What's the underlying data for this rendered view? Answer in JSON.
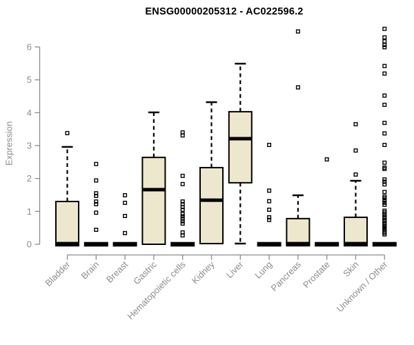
{
  "chart_data": {
    "type": "boxplot",
    "title": "ENSG00000205312 - AC022596.2",
    "ylabel": "Expression",
    "xlabel": "",
    "ylim": [
      0,
      6.6
    ],
    "yticks": [
      0,
      1,
      2,
      3,
      4,
      5,
      6
    ],
    "grid": false,
    "legend": "none",
    "colors": {
      "box_fill": "#EDE7CD",
      "box_stroke": "#000000",
      "axis": "#8A8A8A",
      "tick_text": "#8C8C8C",
      "title_text": "#000000"
    },
    "categories": [
      "Bladder",
      "Brain",
      "Breast",
      "Gastric",
      "Hematopoietic cells",
      "Kidney",
      "Liver",
      "Lung",
      "Pancreas",
      "Prostate",
      "Skin",
      "Unknown / Other"
    ],
    "series": [
      {
        "category": "Bladder",
        "low": 0,
        "q1": 0,
        "median": 0,
        "q3": 1.3,
        "high": 2.96,
        "outliers": [
          3.38
        ]
      },
      {
        "category": "Brain",
        "low": 0,
        "q1": 0,
        "median": 0,
        "q3": 0,
        "high": 0,
        "outliers": [
          2.44,
          1.94,
          1.55,
          1.47,
          1.3,
          1.22,
          0.96,
          0.44
        ]
      },
      {
        "category": "Breast",
        "low": 0,
        "q1": 0,
        "median": 0,
        "q3": 0,
        "high": 0,
        "outliers": [
          1.49,
          1.26,
          0.86,
          0.34
        ]
      },
      {
        "category": "Gastric",
        "low": 0,
        "q1": 0,
        "median": 1.66,
        "q3": 2.64,
        "high": 4.01,
        "outliers": []
      },
      {
        "category": "Hematopoietic cells",
        "low": 0,
        "q1": 0,
        "median": 0,
        "q3": 0,
        "high": 0,
        "outliers": [
          3.4,
          3.31,
          2.08,
          1.83,
          1.3,
          1.22,
          1.13,
          1.05,
          0.92,
          0.85,
          0.78,
          0.7,
          0.63,
          0.36,
          0.27
        ]
      },
      {
        "category": "Kidney",
        "low": 0.02,
        "q1": 0.02,
        "median": 1.34,
        "q3": 2.33,
        "high": 4.32,
        "outliers": []
      },
      {
        "category": "Liver",
        "low": 0.02,
        "q1": 1.87,
        "median": 3.21,
        "q3": 4.03,
        "high": 5.49,
        "outliers": []
      },
      {
        "category": "Lung",
        "low": 0,
        "q1": 0,
        "median": 0,
        "q3": 0,
        "high": 0,
        "outliers": [
          3.02,
          1.63,
          1.31,
          1.05,
          0.82,
          0.74
        ]
      },
      {
        "category": "Pancreas",
        "low": 0,
        "q1": 0,
        "median": 0,
        "q3": 0.78,
        "high": 1.49,
        "outliers": [
          6.47,
          4.77
        ]
      },
      {
        "category": "Prostate",
        "low": 0,
        "q1": 0,
        "median": 0,
        "q3": 0,
        "high": 0,
        "outliers": [
          2.58
        ]
      },
      {
        "category": "Skin",
        "low": 0,
        "q1": 0,
        "median": 0,
        "q3": 0.82,
        "high": 1.93,
        "outliers": [
          3.65,
          2.85,
          2.12
        ]
      },
      {
        "category": "Unknown / Other",
        "low": 0,
        "q1": 0,
        "median": 0,
        "q3": 0,
        "high": 0,
        "outliers": [
          6.55,
          6.29,
          6.17,
          6.06,
          5.99,
          5.42,
          5.19,
          4.52,
          4.24,
          3.69,
          3.37,
          3.02,
          2.48,
          2.33,
          2.29,
          1.97,
          1.9,
          1.82,
          1.59,
          1.45,
          1.4,
          1.33,
          1.26,
          1.2,
          1.02,
          0.97,
          0.92,
          0.88,
          0.83,
          0.79,
          0.74,
          0.7,
          0.65,
          0.61,
          0.56,
          0.52,
          0.48,
          0.44,
          0.39,
          0.35,
          0.3
        ]
      }
    ]
  }
}
